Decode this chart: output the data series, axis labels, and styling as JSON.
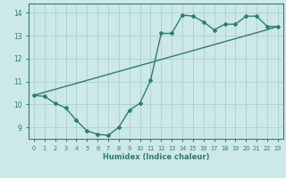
{
  "line1_x": [
    0,
    1,
    2,
    3,
    4,
    5,
    6,
    7,
    8,
    9,
    10,
    11,
    12,
    13,
    14,
    15,
    16,
    17,
    18,
    19,
    20,
    21,
    22,
    23
  ],
  "line1_y": [
    10.4,
    10.53,
    10.66,
    10.79,
    10.92,
    11.05,
    11.18,
    11.31,
    11.44,
    11.57,
    11.7,
    11.83,
    11.96,
    12.09,
    12.22,
    12.35,
    12.48,
    12.61,
    12.74,
    12.87,
    13.0,
    13.13,
    13.26,
    13.4
  ],
  "line2_x": [
    0,
    1,
    2,
    3,
    4,
    5,
    6,
    7,
    8,
    9,
    10,
    11,
    12,
    13,
    14,
    15,
    16,
    17,
    18,
    19,
    20,
    21,
    22,
    23
  ],
  "line2_y": [
    10.4,
    10.35,
    10.05,
    9.85,
    9.3,
    8.85,
    8.7,
    8.65,
    9.0,
    9.75,
    10.05,
    11.05,
    13.1,
    13.1,
    13.9,
    13.85,
    13.6,
    13.25,
    13.5,
    13.5,
    13.85,
    13.85,
    13.4,
    13.4
  ],
  "color": "#2e7d70",
  "bg_color": "#cce8e8",
  "grid_color": "#aed0d0",
  "xlabel": "Humidex (Indice chaleur)",
  "ylim": [
    8.5,
    14.4
  ],
  "xlim": [
    -0.5,
    23.5
  ],
  "yticks": [
    9,
    10,
    11,
    12,
    13,
    14
  ],
  "xticks": [
    0,
    1,
    2,
    3,
    4,
    5,
    6,
    7,
    8,
    9,
    10,
    11,
    12,
    13,
    14,
    15,
    16,
    17,
    18,
    19,
    20,
    21,
    22,
    23
  ],
  "xtick_labels": [
    "0",
    "1",
    "2",
    "3",
    "4",
    "5",
    "6",
    "7",
    "8",
    "9",
    "10",
    "11",
    "12",
    "13",
    "14",
    "15",
    "16",
    "17",
    "18",
    "19",
    "20",
    "21",
    "22",
    "23"
  ],
  "marker": "D",
  "markersize": 2.0,
  "linewidth": 1.0
}
